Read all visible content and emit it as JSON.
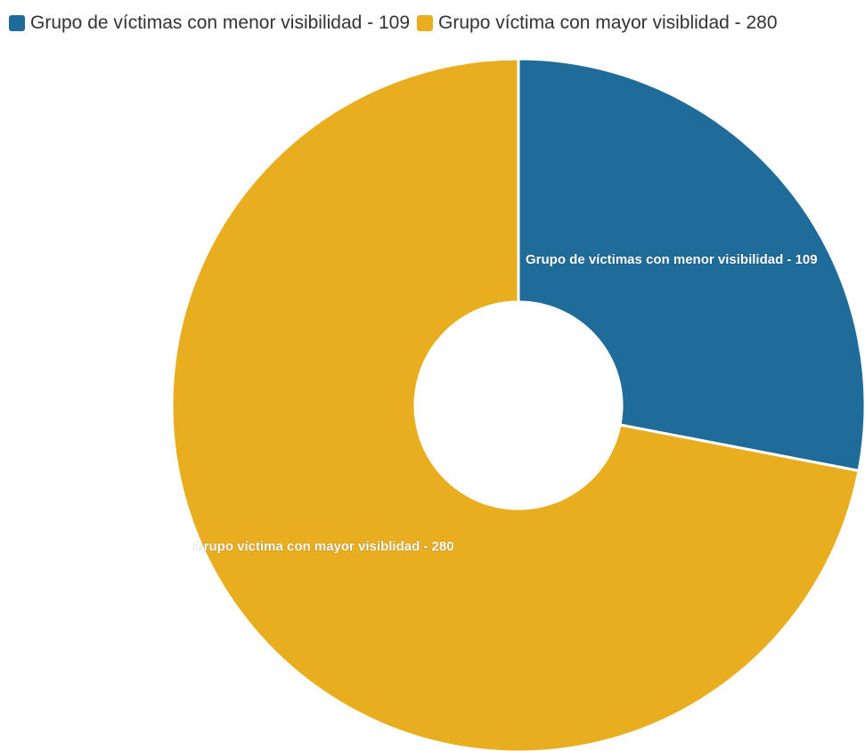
{
  "chart_data": {
    "type": "pie",
    "donut": true,
    "title": "",
    "legend_position": "top-left",
    "slices": [
      {
        "label": "Grupo de víctimas con menor visibilidad - 109",
        "value": 109,
        "color": "#1f6b99"
      },
      {
        "label": "Grupo víctima con mayor visiblidad - 280",
        "value": 280,
        "color": "#e9ae1f"
      }
    ]
  }
}
